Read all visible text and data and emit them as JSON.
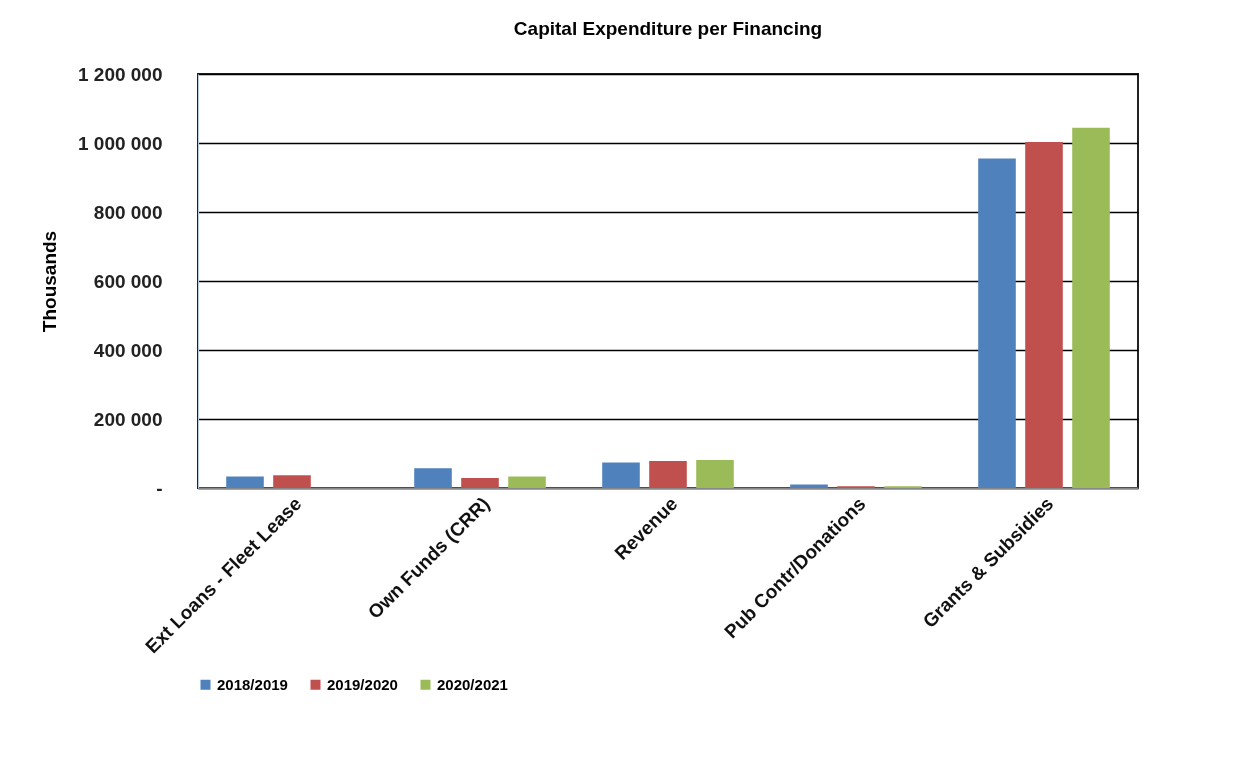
{
  "chart_data": {
    "type": "bar",
    "title": "Capital Expenditure per Financing",
    "ylabel": "Thousands",
    "categories": [
      "Ext Loans - Fleet Lease",
      "Own Funds (CRR)",
      "Revenue",
      "Pub Contr/Donations",
      "Grants & Subsidies"
    ],
    "series": [
      {
        "name": "2018/2019",
        "color": "#4f81bd",
        "values": [
          33000,
          57000,
          74000,
          10000,
          955000
        ]
      },
      {
        "name": "2019/2020",
        "color": "#c0504d",
        "values": [
          37000,
          29000,
          78000,
          5000,
          1003000
        ]
      },
      {
        "name": "2020/2021",
        "color": "#9bbb59",
        "values": [
          null,
          33000,
          81000,
          5000,
          1044000
        ]
      }
    ],
    "ylim": [
      0,
      1200000
    ],
    "yticks": [
      {
        "value": 0,
        "label": "-"
      },
      {
        "value": 200000,
        "label": "200 000"
      },
      {
        "value": 400000,
        "label": "400 000"
      },
      {
        "value": 600000,
        "label": "600 000"
      },
      {
        "value": 800000,
        "label": "800 000"
      },
      {
        "value": 1000000,
        "label": "1 000 000"
      },
      {
        "value": 1200000,
        "label": "1 200 000"
      }
    ],
    "grid": "y",
    "legend": "bottom"
  }
}
